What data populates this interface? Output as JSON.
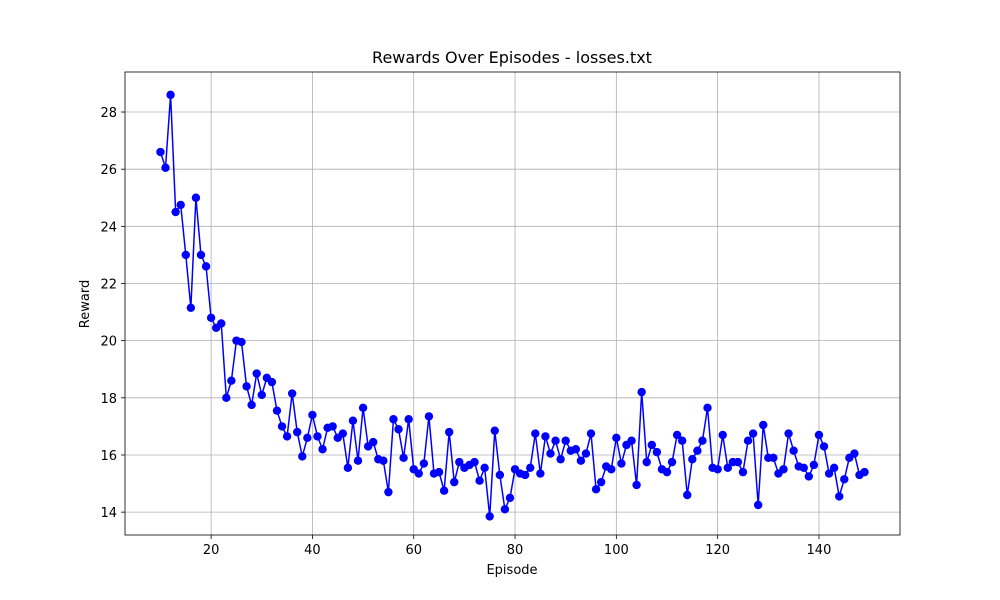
{
  "chart_data": {
    "type": "line",
    "title": "Rewards Over Episodes - losses.txt",
    "xlabel": "Episode",
    "ylabel": "Reward",
    "xlim": [
      3,
      156
    ],
    "ylim": [
      13.2,
      29.4
    ],
    "xticks": [
      20,
      40,
      60,
      80,
      100,
      120,
      140
    ],
    "yticks": [
      14,
      16,
      18,
      20,
      22,
      24,
      26,
      28
    ],
    "grid": true,
    "colors": {
      "line": "#0000ff",
      "marker": "#0000ff"
    },
    "series": [
      {
        "marker": "circle",
        "x": [
          10,
          11,
          12,
          13,
          14,
          15,
          16,
          17,
          18,
          19,
          20,
          21,
          22,
          23,
          24,
          25,
          26,
          27,
          28,
          29,
          30,
          31,
          32,
          33,
          34,
          35,
          36,
          37,
          38,
          39,
          40,
          41,
          42,
          43,
          44,
          45,
          46,
          47,
          48,
          49,
          50,
          51,
          52,
          53,
          54,
          55,
          56,
          57,
          58,
          59,
          60,
          61,
          62,
          63,
          64,
          65,
          66,
          67,
          68,
          69,
          70,
          71,
          72,
          73,
          74,
          75,
          76,
          77,
          78,
          79,
          80,
          81,
          82,
          83,
          84,
          85,
          86,
          87,
          88,
          89,
          90,
          91,
          92,
          93,
          94,
          95,
          96,
          97,
          98,
          99,
          100,
          101,
          102,
          103,
          104,
          105,
          106,
          107,
          108,
          109,
          110,
          111,
          112,
          113,
          114,
          115,
          116,
          117,
          118,
          119,
          120,
          121,
          122,
          123,
          124,
          125,
          126,
          127,
          128,
          129,
          130,
          131,
          132,
          133,
          134,
          135,
          136,
          137,
          138,
          139,
          140,
          141,
          142,
          143,
          144,
          145,
          146,
          147,
          148,
          149
        ],
        "values": [
          26.6,
          26.05,
          28.6,
          24.5,
          24.75,
          23.0,
          21.15,
          25.0,
          23.0,
          22.6,
          20.8,
          20.45,
          20.6,
          18.0,
          18.6,
          20.0,
          19.95,
          18.4,
          17.75,
          18.85,
          18.1,
          18.7,
          18.55,
          17.55,
          17.0,
          16.65,
          18.15,
          16.8,
          15.95,
          16.6,
          17.4,
          16.65,
          16.2,
          16.95,
          17.0,
          16.6,
          16.75,
          15.55,
          17.2,
          15.8,
          17.65,
          16.3,
          16.45,
          15.85,
          15.8,
          14.7,
          17.25,
          16.9,
          15.9,
          17.25,
          15.5,
          15.35,
          15.7,
          17.35,
          15.35,
          15.4,
          14.75,
          16.8,
          15.05,
          15.75,
          15.55,
          15.65,
          15.75,
          15.1,
          15.55,
          13.85,
          16.85,
          15.3,
          14.1,
          14.5,
          15.5,
          15.35,
          15.3,
          15.55,
          16.75,
          15.35,
          16.65,
          16.05,
          16.5,
          15.85,
          16.5,
          16.15,
          16.2,
          15.8,
          16.05,
          16.75,
          14.8,
          15.05,
          15.6,
          15.5,
          16.6,
          15.7,
          16.35,
          16.5,
          14.95,
          18.2,
          15.75,
          16.35,
          16.1,
          15.5,
          15.4,
          15.75,
          16.7,
          16.5,
          14.6,
          15.85,
          16.15,
          16.5,
          17.65,
          15.55,
          15.5,
          16.7,
          15.55,
          15.75,
          15.75,
          15.4,
          16.5,
          16.75,
          14.25,
          17.05,
          15.9,
          15.9,
          15.35,
          15.5,
          16.75,
          16.15,
          15.6,
          15.55,
          15.25,
          15.65,
          16.7,
          16.3,
          15.35,
          15.55,
          14.55,
          15.15,
          15.9,
          16.05,
          15.3,
          15.4
        ]
      }
    ]
  }
}
